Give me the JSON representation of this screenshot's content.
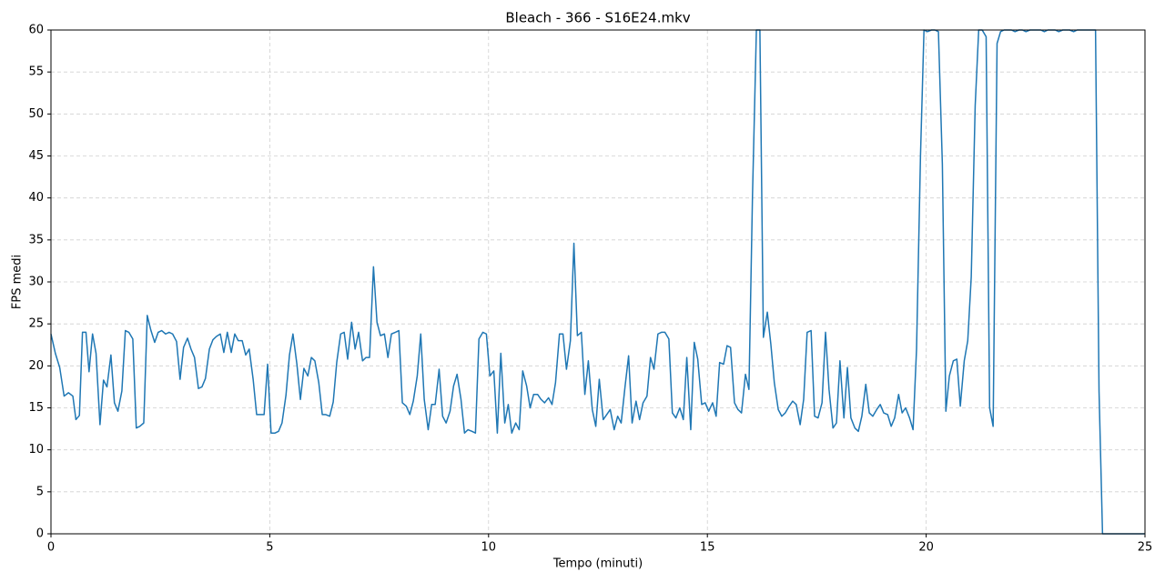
{
  "chart_data": {
    "type": "line",
    "title": "Bleach - 366 - S16E24.mkv",
    "xlabel": "Tempo (minuti)",
    "ylabel": "FPS medi",
    "color": "#1f77b4",
    "grid": true,
    "xlim": [
      0,
      25
    ],
    "xticks": [
      0,
      5,
      10,
      15,
      20,
      25
    ],
    "ylim": [
      0,
      60
    ],
    "yticks": [
      0,
      5,
      10,
      15,
      20,
      25,
      30,
      35,
      40,
      45,
      50,
      55,
      60
    ],
    "x": [
      0.0,
      0.1,
      0.2,
      0.3,
      0.4,
      0.5,
      0.57,
      0.65,
      0.72,
      0.8,
      0.87,
      0.95,
      1.03,
      1.12,
      1.2,
      1.28,
      1.37,
      1.45,
      1.53,
      1.62,
      1.7,
      1.78,
      1.87,
      1.95,
      2.03,
      2.12,
      2.2,
      2.28,
      2.37,
      2.45,
      2.53,
      2.62,
      2.7,
      2.78,
      2.87,
      2.95,
      3.03,
      3.12,
      3.2,
      3.28,
      3.37,
      3.45,
      3.53,
      3.62,
      3.7,
      3.78,
      3.87,
      3.95,
      4.03,
      4.12,
      4.2,
      4.28,
      4.37,
      4.45,
      4.53,
      4.62,
      4.7,
      4.78,
      4.87,
      4.95,
      5.03,
      5.12,
      5.2,
      5.28,
      5.37,
      5.45,
      5.53,
      5.62,
      5.7,
      5.78,
      5.87,
      5.95,
      6.03,
      6.12,
      6.2,
      6.28,
      6.37,
      6.45,
      6.53,
      6.62,
      6.7,
      6.78,
      6.87,
      6.95,
      7.03,
      7.12,
      7.2,
      7.28,
      7.37,
      7.45,
      7.53,
      7.62,
      7.7,
      7.78,
      7.87,
      7.95,
      8.03,
      8.12,
      8.2,
      8.28,
      8.37,
      8.45,
      8.53,
      8.62,
      8.7,
      8.78,
      8.87,
      8.95,
      9.03,
      9.12,
      9.2,
      9.28,
      9.37,
      9.45,
      9.53,
      9.62,
      9.7,
      9.78,
      9.87,
      9.95,
      10.03,
      10.12,
      10.2,
      10.28,
      10.37,
      10.45,
      10.53,
      10.62,
      10.7,
      10.78,
      10.87,
      10.95,
      11.03,
      11.12,
      11.2,
      11.28,
      11.37,
      11.45,
      11.53,
      11.62,
      11.7,
      11.78,
      11.87,
      11.95,
      12.03,
      12.12,
      12.2,
      12.28,
      12.37,
      12.45,
      12.53,
      12.62,
      12.7,
      12.78,
      12.87,
      12.95,
      13.03,
      13.12,
      13.2,
      13.28,
      13.37,
      13.45,
      13.53,
      13.62,
      13.7,
      13.78,
      13.87,
      13.95,
      14.03,
      14.12,
      14.2,
      14.28,
      14.37,
      14.45,
      14.53,
      14.62,
      14.7,
      14.78,
      14.87,
      14.95,
      15.03,
      15.12,
      15.2,
      15.28,
      15.37,
      15.45,
      15.53,
      15.62,
      15.7,
      15.78,
      15.87,
      15.95,
      16.03,
      16.12,
      16.2,
      16.28,
      16.37,
      16.45,
      16.53,
      16.62,
      16.7,
      16.78,
      16.87,
      16.95,
      17.03,
      17.12,
      17.2,
      17.28,
      17.37,
      17.45,
      17.53,
      17.62,
      17.7,
      17.78,
      17.87,
      17.95,
      18.03,
      18.12,
      18.2,
      18.28,
      18.37,
      18.45,
      18.53,
      18.62,
      18.7,
      18.78,
      18.87,
      18.95,
      19.03,
      19.12,
      19.2,
      19.28,
      19.37,
      19.45,
      19.53,
      19.62,
      19.7,
      19.78,
      19.87,
      19.95,
      20.03,
      20.12,
      20.2,
      20.28,
      20.37,
      20.45,
      20.53,
      20.62,
      20.7,
      20.78,
      20.87,
      20.95,
      21.03,
      21.12,
      21.2,
      21.28,
      21.37,
      21.45,
      21.53,
      21.62,
      21.7,
      21.78,
      21.87,
      21.95,
      22.03,
      22.12,
      22.2,
      22.28,
      22.37,
      22.45,
      22.53,
      22.62,
      22.7,
      22.78,
      22.87,
      22.95,
      23.03,
      23.12,
      23.2,
      23.28,
      23.37,
      23.45,
      23.53,
      23.62,
      23.7,
      23.78,
      23.87,
      23.95,
      24.03,
      24.2,
      24.37,
      24.53,
      24.7,
      24.87,
      25.0
    ],
    "values": [
      23.8,
      21.5,
      19.8,
      16.4,
      16.8,
      16.4,
      13.6,
      14.1,
      24.0,
      24.0,
      19.3,
      23.8,
      21.5,
      13.0,
      18.3,
      17.5,
      21.3,
      15.6,
      14.6,
      17.0,
      24.2,
      24.0,
      23.2,
      12.6,
      12.8,
      13.2,
      26.0,
      24.3,
      22.8,
      24.0,
      24.2,
      23.8,
      24.0,
      23.8,
      22.9,
      18.4,
      22.2,
      23.3,
      22.0,
      21.0,
      17.3,
      17.5,
      18.5,
      22.0,
      23.1,
      23.5,
      23.8,
      21.6,
      24.0,
      21.6,
      23.8,
      23.0,
      23.0,
      21.3,
      22.0,
      18.4,
      14.2,
      14.2,
      14.2,
      20.2,
      12.0,
      12.0,
      12.2,
      13.2,
      16.5,
      21.3,
      23.8,
      20.2,
      16.0,
      19.7,
      18.8,
      21.0,
      20.6,
      18.0,
      14.2,
      14.2,
      14.0,
      15.7,
      20.4,
      23.8,
      24.0,
      20.8,
      25.2,
      22.0,
      24.0,
      20.6,
      21.0,
      21.0,
      31.8,
      25.2,
      23.6,
      23.8,
      21.0,
      23.8,
      24.0,
      24.2,
      15.6,
      15.2,
      14.2,
      15.8,
      18.8,
      23.8,
      16.0,
      12.4,
      15.4,
      15.4,
      19.6,
      14.0,
      13.2,
      14.6,
      17.6,
      19.0,
      16.0,
      12.0,
      12.4,
      12.2,
      12.0,
      23.2,
      24.0,
      23.8,
      18.8,
      19.4,
      12.0,
      21.5,
      13.2,
      15.4,
      12.0,
      13.2,
      12.4,
      19.4,
      17.6,
      15.0,
      16.6,
      16.6,
      16.0,
      15.6,
      16.2,
      15.4,
      18.0,
      23.8,
      23.8,
      19.6,
      23.0,
      34.6,
      23.6,
      24.0,
      16.6,
      20.6,
      14.8,
      12.8,
      18.4,
      13.6,
      14.2,
      14.8,
      12.4,
      14.0,
      13.2,
      17.6,
      21.2,
      13.2,
      15.8,
      13.6,
      15.6,
      16.4,
      21.0,
      19.6,
      23.8,
      24.0,
      24.0,
      23.2,
      14.4,
      13.8,
      15.0,
      13.6,
      21.0,
      12.4,
      22.8,
      20.8,
      15.4,
      15.6,
      14.6,
      15.6,
      14.0,
      20.4,
      20.2,
      22.4,
      22.2,
      15.6,
      14.8,
      14.4,
      19.0,
      17.2,
      40.0,
      60.0,
      60.0,
      23.4,
      26.4,
      22.6,
      18.0,
      14.8,
      14.0,
      14.4,
      15.2,
      15.8,
      15.4,
      13.0,
      16.0,
      24.0,
      24.2,
      14.0,
      13.8,
      15.6,
      24.0,
      17.2,
      12.6,
      13.2,
      20.6,
      13.8,
      19.8,
      13.8,
      12.6,
      12.2,
      14.0,
      17.8,
      14.4,
      14.0,
      14.8,
      15.4,
      14.4,
      14.2,
      12.8,
      13.8,
      16.6,
      14.4,
      15.0,
      13.8,
      12.4,
      22.0,
      45.0,
      60.0,
      59.8,
      60.0,
      60.0,
      59.8,
      44.0,
      14.6,
      18.8,
      20.6,
      20.8,
      15.2,
      20.6,
      23.0,
      30.6,
      51.0,
      60.0,
      60.0,
      59.2,
      15.0,
      12.8,
      58.4,
      59.8,
      60.0,
      60.0,
      60.0,
      59.8,
      60.0,
      60.0,
      59.8,
      60.0,
      60.0,
      60.0,
      60.0,
      59.8,
      60.0,
      60.0,
      60.0,
      59.8,
      60.0,
      60.0,
      60.0,
      59.8,
      60.0,
      60.0,
      60.0,
      60.0,
      60.0,
      60.0,
      17.0,
      0,
      0,
      0,
      0,
      0,
      0,
      0
    ]
  }
}
